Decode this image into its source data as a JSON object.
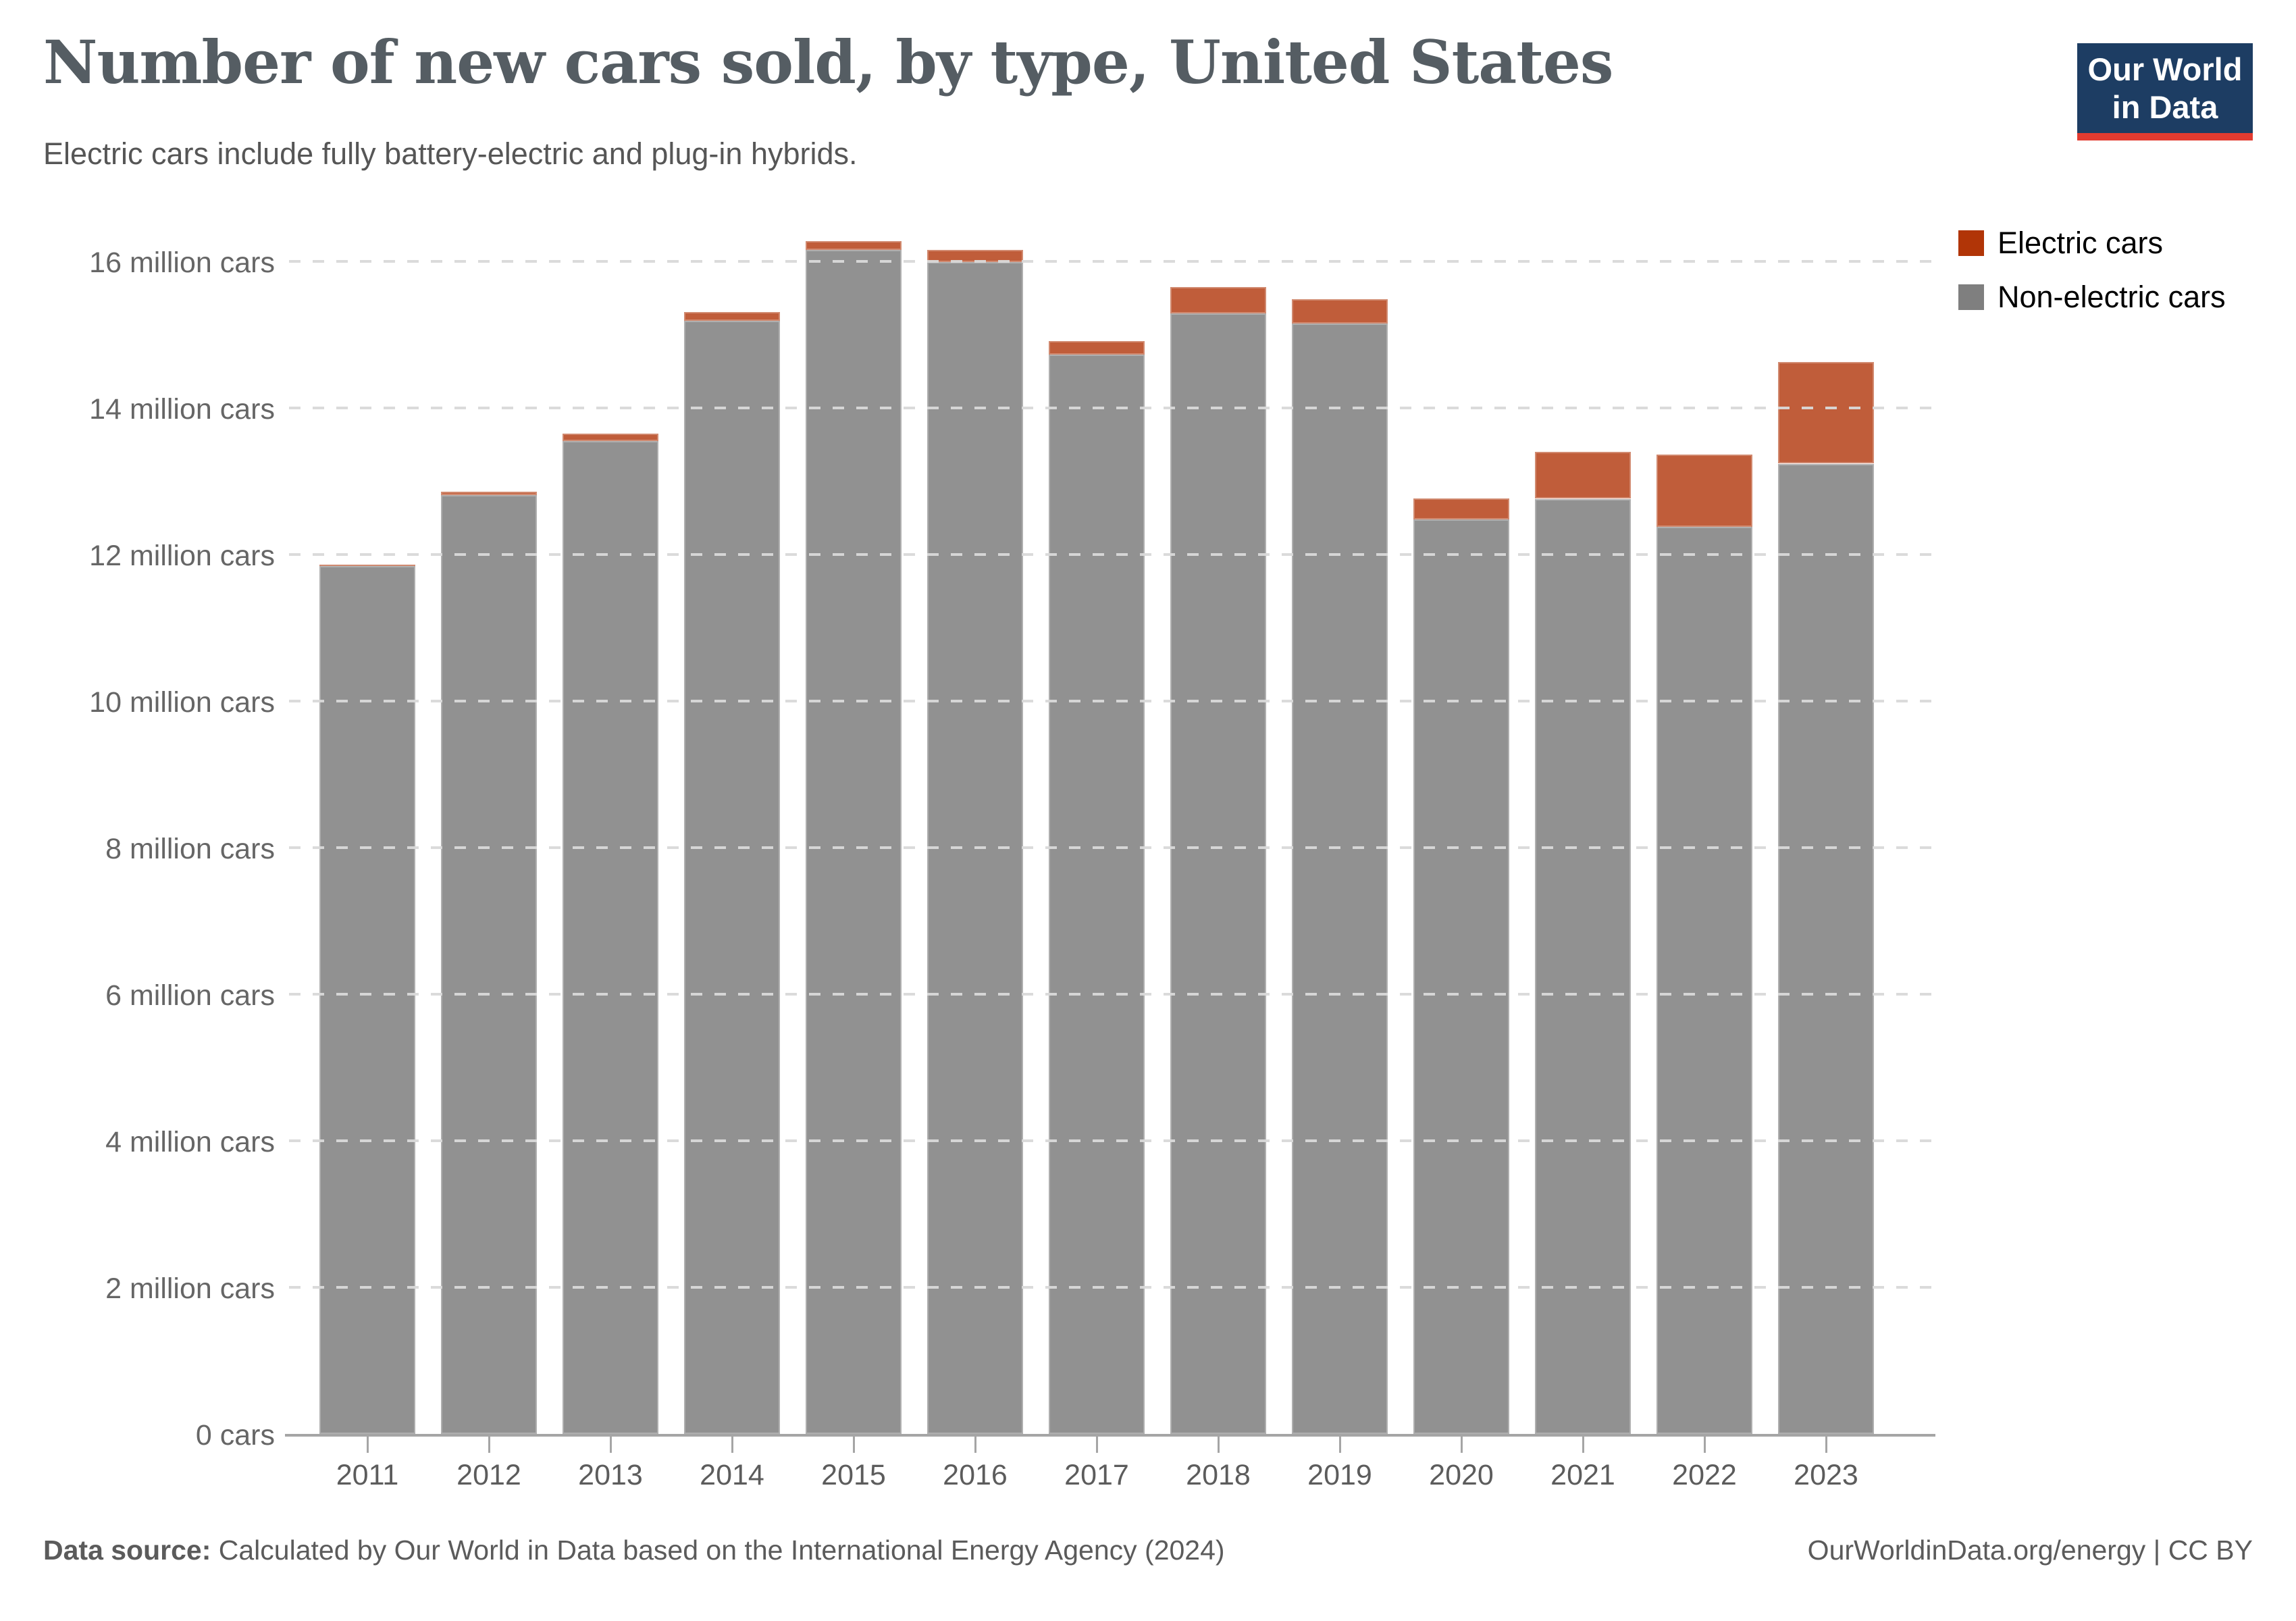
{
  "header": {
    "title": "Number of new cars sold, by type, United States",
    "subtitle": "Electric cars include fully battery-electric and plug-in hybrids."
  },
  "logo": {
    "line1": "Our World",
    "line2": "in Data",
    "bg_color": "#1d3d63",
    "accent_color": "#e23b30"
  },
  "legend": {
    "position": "top-right",
    "items": [
      {
        "label": "Electric cars",
        "color": "#b13507"
      },
      {
        "label": "Non-electric cars",
        "color": "#7f7f7f"
      }
    ]
  },
  "chart_data": {
    "type": "bar",
    "stacked": true,
    "title": "Number of new cars sold, by type, United States",
    "xlabel": "",
    "ylabel": "",
    "unit": "million cars",
    "grid": "dashed horizontal gridlines drawn above bars",
    "legend_position": "top-right",
    "categories": [
      "2011",
      "2012",
      "2013",
      "2014",
      "2015",
      "2016",
      "2017",
      "2018",
      "2019",
      "2020",
      "2021",
      "2022",
      "2023"
    ],
    "series": [
      {
        "name": "Non-electric cars",
        "bar_color": "#919191",
        "legend_color": "#7f7f7f",
        "values": [
          11.84,
          12.81,
          13.55,
          15.19,
          16.16,
          15.99,
          14.73,
          15.29,
          15.15,
          12.48,
          12.76,
          12.38,
          13.24
        ]
      },
      {
        "name": "Electric cars",
        "bar_color": "#c05d3a",
        "legend_color": "#b13507",
        "values": [
          0.02,
          0.05,
          0.1,
          0.12,
          0.12,
          0.17,
          0.18,
          0.36,
          0.33,
          0.29,
          0.64,
          0.98,
          1.39
        ]
      }
    ],
    "totals": [
      11.86,
      12.86,
      13.65,
      15.31,
      16.28,
      16.16,
      14.91,
      15.65,
      15.48,
      12.77,
      13.4,
      13.36,
      14.63
    ],
    "ylim": [
      0,
      16.5
    ],
    "yticks": [
      {
        "value": 0,
        "label": "0 cars"
      },
      {
        "value": 2,
        "label": "2 million cars"
      },
      {
        "value": 4,
        "label": "4 million cars"
      },
      {
        "value": 6,
        "label": "6 million cars"
      },
      {
        "value": 8,
        "label": "8 million cars"
      },
      {
        "value": 10,
        "label": "10 million cars"
      },
      {
        "value": 12,
        "label": "12 million cars"
      },
      {
        "value": 14,
        "label": "14 million cars"
      },
      {
        "value": 16,
        "label": "16 million cars"
      }
    ]
  },
  "footer": {
    "source_label": "Data source:",
    "source_text": " Calculated by Our World in Data based on the International Energy Agency (2024)",
    "right_text": "OurWorldinData.org/energy | CC BY"
  }
}
